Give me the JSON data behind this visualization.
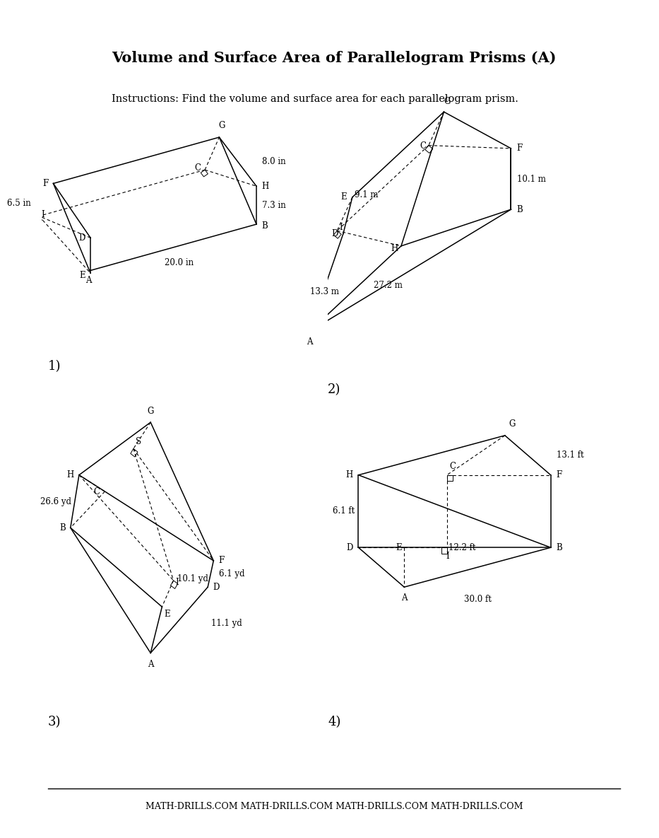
{
  "title": "Volume and Surface Area of Parallelogram Prisms (A)",
  "instructions": "Instructions: Find the volume and surface area for each parallelogram prism.",
  "title_fontsize": 15,
  "instructions_fontsize": 10.5,
  "background_color": "#ffffff",
  "footer_text": "MATH-DRILLS.COM MATH-DRILLS.COM MATH-DRILLS.COM MATH-DRILLS.COM",
  "prism1": {
    "label": "1)",
    "dims": {
      "d1": "8.0 in",
      "d2": "7.3 in",
      "d3": "6.5 in",
      "d4": "20.0 in"
    }
  },
  "prism2": {
    "label": "2)",
    "dims": {
      "d1": "10.1 m",
      "d2": "27.2 m",
      "d3": "9.1 m",
      "d4": "13.3 m"
    }
  },
  "prism3": {
    "label": "3)",
    "dims": {
      "d1": "10.1 yd",
      "d2": "6.1 yd",
      "d3": "11.1 yd",
      "d4": "26.6 yd"
    }
  },
  "prism4": {
    "label": "4)",
    "dims": {
      "d1": "13.1 ft",
      "d2": "6.1 ft",
      "d3": "12.2 ft",
      "d4": "30.0 ft"
    }
  }
}
